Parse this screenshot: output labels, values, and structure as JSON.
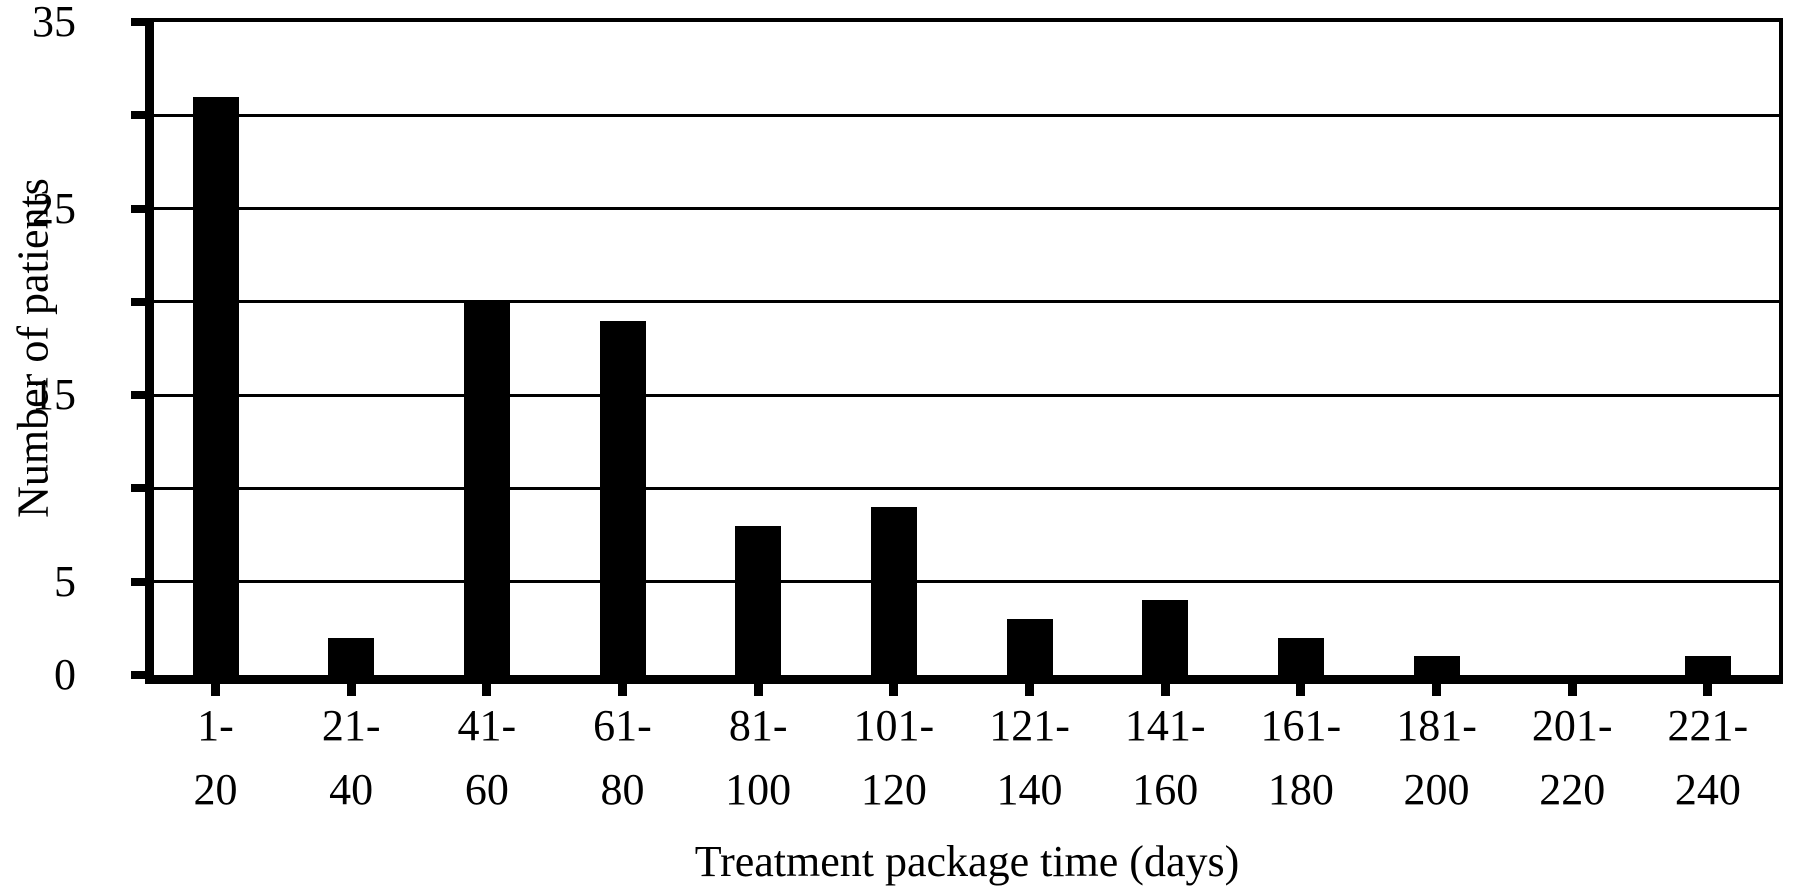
{
  "chart_data": {
    "type": "bar",
    "title": "",
    "xlabel": "Treatment package time (days)",
    "ylabel": "Number of patients",
    "categories": [
      {
        "line1": "1-",
        "line2": "20"
      },
      {
        "line1": "21-",
        "line2": "40"
      },
      {
        "line1": "41-",
        "line2": "60"
      },
      {
        "line1": "61-",
        "line2": "80"
      },
      {
        "line1": "81-",
        "line2": "100"
      },
      {
        "line1": "101-",
        "line2": "120"
      },
      {
        "line1": "121-",
        "line2": "140"
      },
      {
        "line1": "141-",
        "line2": "160"
      },
      {
        "line1": "161-",
        "line2": "180"
      },
      {
        "line1": "181-",
        "line2": "200"
      },
      {
        "line1": "201-",
        "line2": "220"
      },
      {
        "line1": "221-",
        "line2": "240"
      }
    ],
    "values": [
      31,
      2,
      20,
      19,
      8,
      9,
      3,
      4,
      2,
      1,
      0,
      1
    ],
    "ylim": [
      0,
      35
    ],
    "ytick_labels": [
      {
        "value": 35,
        "text": "35"
      },
      {
        "value": 25,
        "text": "25"
      },
      {
        "value": 15,
        "text": "15"
      },
      {
        "value": 5,
        "text": "5"
      },
      {
        "value": 0,
        "text": "0"
      }
    ],
    "ytick_marks": [
      0,
      5,
      10,
      15,
      20,
      25,
      30,
      35
    ],
    "gridline_values": [
      5,
      10,
      15,
      20,
      25,
      30
    ],
    "grid": "horizontal",
    "legend": "none",
    "bar_color": "#000000",
    "line_color": "#000000",
    "background": "#ffffff"
  }
}
